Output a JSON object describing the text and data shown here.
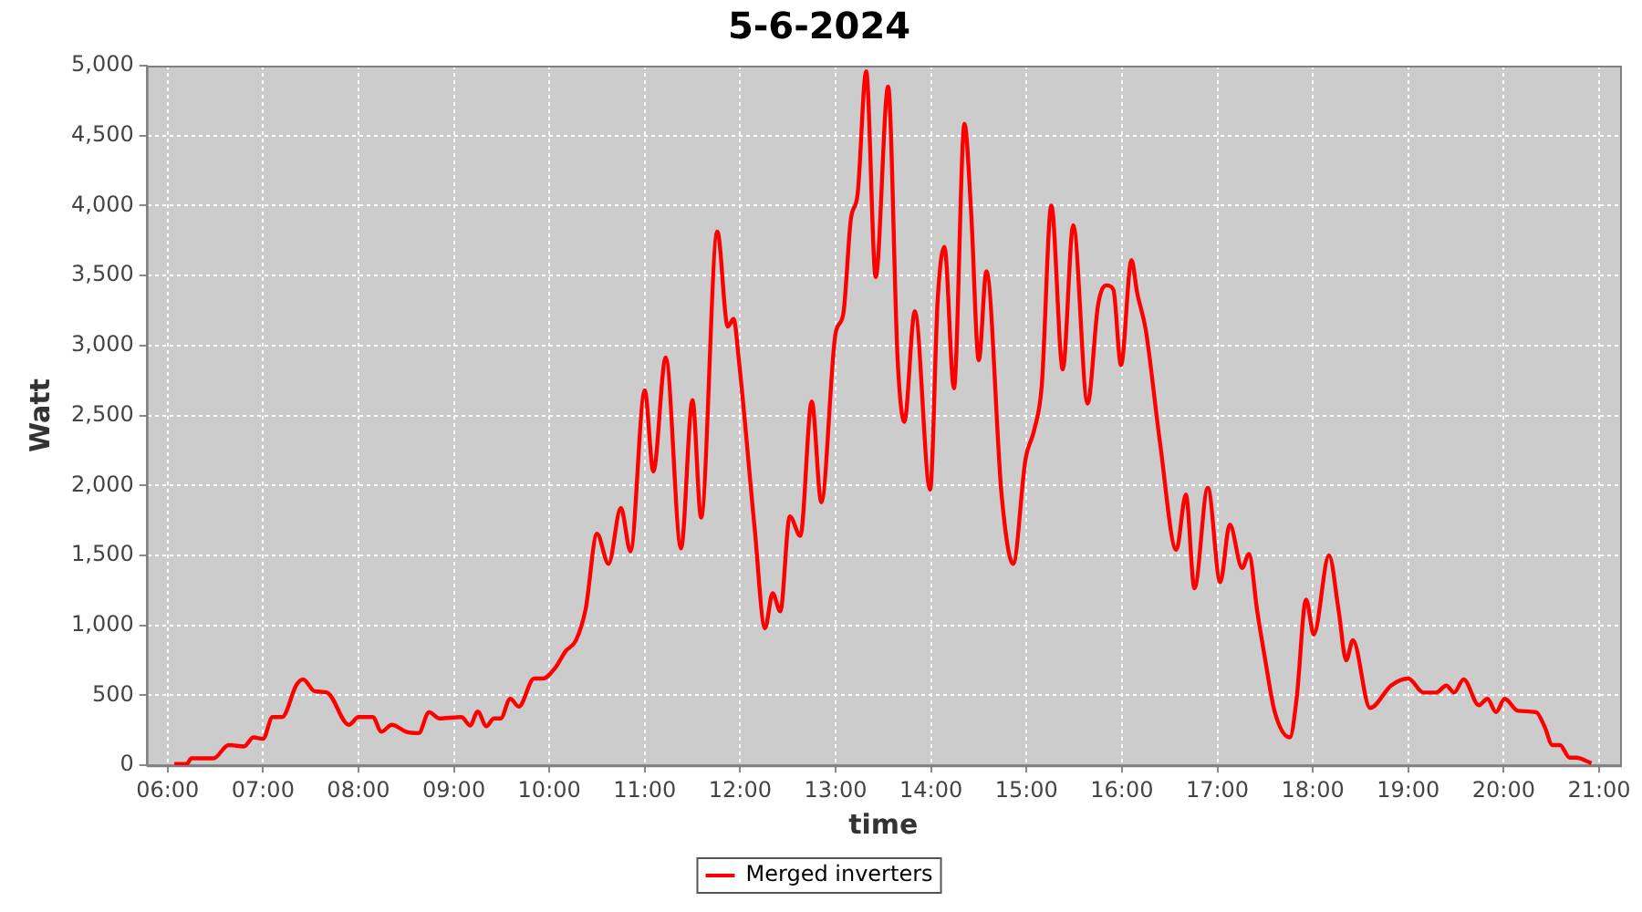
{
  "chart_data": {
    "type": "line",
    "title": "5-6-2024",
    "xlabel": "time",
    "ylabel": "Watt",
    "xlim": [
      5.78,
      21.22
    ],
    "xticks": [
      {
        "value": 6,
        "label": "06:00"
      },
      {
        "value": 7,
        "label": "07:00"
      },
      {
        "value": 8,
        "label": "08:00"
      },
      {
        "value": 9,
        "label": "09:00"
      },
      {
        "value": 10,
        "label": "10:00"
      },
      {
        "value": 11,
        "label": "11:00"
      },
      {
        "value": 12,
        "label": "12:00"
      },
      {
        "value": 13,
        "label": "13:00"
      },
      {
        "value": 14,
        "label": "14:00"
      },
      {
        "value": 15,
        "label": "15:00"
      },
      {
        "value": 16,
        "label": "16:00"
      },
      {
        "value": 17,
        "label": "17:00"
      },
      {
        "value": 18,
        "label": "18:00"
      },
      {
        "value": 19,
        "label": "19:00"
      },
      {
        "value": 20,
        "label": "20:00"
      },
      {
        "value": 21,
        "label": "21:00"
      }
    ],
    "ylim": [
      0,
      5000
    ],
    "yticks": [
      0,
      500,
      {
        "value": 1000,
        "label": "1,000"
      },
      {
        "value": 1500,
        "label": "1,500"
      },
      {
        "value": 2000,
        "label": "2,000"
      },
      {
        "value": 2500,
        "label": "2,500"
      },
      {
        "value": 3000,
        "label": "3,000"
      },
      {
        "value": 3500,
        "label": "3,500"
      },
      {
        "value": 4000,
        "label": "4,000"
      },
      {
        "value": 4500,
        "label": "4,500"
      },
      {
        "value": 5000,
        "label": "5,000"
      }
    ],
    "grid": true,
    "legend": "bottom",
    "x": [
      6.07,
      6.2,
      6.25,
      6.48,
      6.64,
      6.8,
      6.9,
      7.0,
      7.1,
      7.2,
      7.35,
      7.42,
      7.54,
      7.67,
      7.9,
      8.0,
      8.15,
      8.24,
      8.35,
      8.5,
      8.63,
      8.74,
      8.85,
      9.08,
      9.17,
      9.25,
      9.34,
      9.42,
      9.49,
      9.59,
      9.68,
      9.84,
      9.93,
      10.06,
      10.17,
      10.28,
      10.38,
      10.5,
      10.62,
      10.75,
      10.85,
      11.0,
      11.09,
      11.22,
      11.38,
      11.5,
      11.59,
      11.76,
      11.87,
      11.93,
      11.99,
      12.15,
      12.26,
      12.34,
      12.42,
      12.52,
      12.63,
      12.75,
      12.85,
      13.0,
      13.08,
      13.16,
      13.23,
      13.32,
      13.42,
      13.55,
      13.65,
      13.72,
      13.83,
      13.99,
      14.07,
      14.14,
      14.24,
      14.35,
      14.42,
      14.5,
      14.58,
      14.74,
      14.86,
      14.99,
      15.08,
      15.16,
      15.26,
      15.38,
      15.49,
      15.64,
      15.75,
      15.84,
      15.91,
      15.99,
      16.1,
      16.16,
      16.25,
      16.4,
      16.57,
      16.67,
      16.76,
      16.9,
      17.03,
      17.13,
      17.26,
      17.33,
      17.42,
      17.5,
      17.6,
      17.76,
      17.83,
      17.93,
      18.01,
      18.17,
      18.27,
      18.35,
      18.42,
      18.6,
      18.82,
      19.0,
      19.16,
      19.29,
      19.4,
      19.48,
      19.58,
      19.74,
      19.83,
      19.92,
      20.01,
      20.15,
      20.34,
      20.43,
      20.51,
      20.59,
      20.69,
      20.76,
      20.92
    ],
    "series": [
      {
        "name": "Merged inverters",
        "color": "#ff0000",
        "values": [
          10,
          10,
          50,
          50,
          145,
          135,
          200,
          190,
          345,
          345,
          575,
          615,
          530,
          520,
          290,
          345,
          345,
          240,
          290,
          240,
          230,
          380,
          335,
          345,
          285,
          385,
          280,
          335,
          335,
          475,
          420,
          620,
          620,
          695,
          815,
          895,
          1115,
          1655,
          1440,
          1840,
          1530,
          2680,
          2100,
          2915,
          1550,
          2610,
          1770,
          3815,
          3135,
          3190,
          2870,
          1705,
          980,
          1230,
          1100,
          1780,
          1640,
          2600,
          1880,
          3090,
          3225,
          3905,
          4080,
          4960,
          3490,
          4850,
          2895,
          2455,
          3245,
          1970,
          3335,
          3705,
          2695,
          4585,
          3950,
          2895,
          3530,
          1925,
          1440,
          2190,
          2395,
          2715,
          4000,
          2830,
          3860,
          2585,
          3290,
          3430,
          3400,
          2860,
          3610,
          3375,
          3110,
          2300,
          1540,
          1935,
          1265,
          1985,
          1310,
          1720,
          1410,
          1510,
          1090,
          760,
          385,
          200,
          475,
          1185,
          935,
          1500,
          1110,
          750,
          895,
          410,
          570,
          620,
          520,
          520,
          570,
          520,
          615,
          430,
          475,
          380,
          475,
          390,
          380,
          275,
          145,
          145,
          55,
          55,
          15
        ]
      }
    ]
  }
}
